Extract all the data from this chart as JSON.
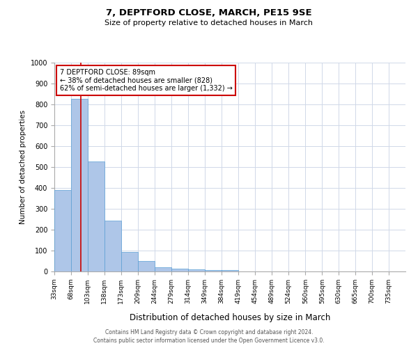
{
  "title1": "7, DEPTFORD CLOSE, MARCH, PE15 9SE",
  "title2": "Size of property relative to detached houses in March",
  "xlabel": "Distribution of detached houses by size in March",
  "ylabel": "Number of detached properties",
  "bin_labels": [
    "33sqm",
    "68sqm",
    "103sqm",
    "138sqm",
    "173sqm",
    "209sqm",
    "244sqm",
    "279sqm",
    "314sqm",
    "349sqm",
    "384sqm",
    "419sqm",
    "454sqm",
    "489sqm",
    "524sqm",
    "560sqm",
    "595sqm",
    "630sqm",
    "665sqm",
    "700sqm",
    "735sqm"
  ],
  "bin_edges": [
    33,
    68,
    103,
    138,
    173,
    209,
    244,
    279,
    314,
    349,
    384,
    419,
    454,
    489,
    524,
    560,
    595,
    630,
    665,
    700,
    735
  ],
  "bar_heights": [
    390,
    828,
    528,
    242,
    95,
    50,
    20,
    15,
    10,
    8,
    8,
    0,
    0,
    0,
    0,
    0,
    0,
    0,
    0,
    0,
    0
  ],
  "bar_color": "#aec6e8",
  "bar_edge_color": "#5a9fd4",
  "property_size": 89,
  "vline_color": "#cc0000",
  "ylim": [
    0,
    1000
  ],
  "annotation_text": "7 DEPTFORD CLOSE: 89sqm\n← 38% of detached houses are smaller (828)\n62% of semi-detached houses are larger (1,332) →",
  "annotation_box_color": "#cc0000",
  "annotation_bg": "#ffffff",
  "grid_color": "#d0d8e8",
  "footnote1": "Contains HM Land Registry data © Crown copyright and database right 2024.",
  "footnote2": "Contains public sector information licensed under the Open Government Licence v3.0.",
  "fig_width": 6.0,
  "fig_height": 5.0,
  "dpi": 100
}
